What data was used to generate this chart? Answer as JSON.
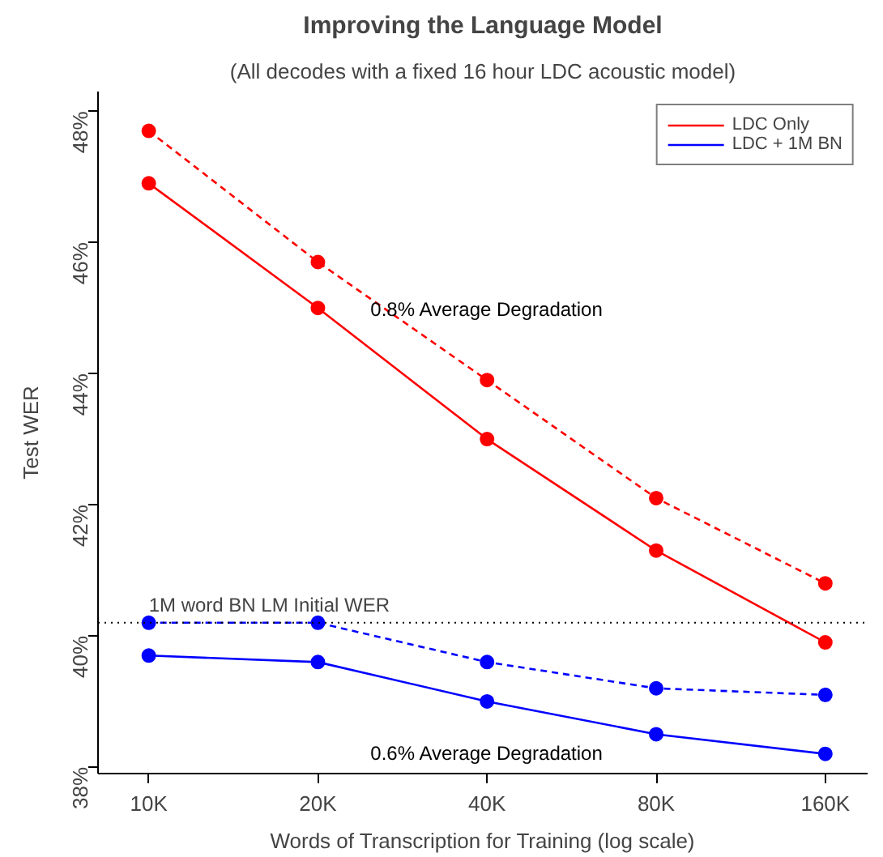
{
  "chart_data": {
    "type": "line",
    "title": "Improving the Language Model",
    "subtitle": "(All decodes with a fixed 16 hour LDC acoustic model)",
    "xlabel": "Words of Transcription for Training (log scale)",
    "ylabel": "Test WER",
    "categories": [
      "10K",
      "20K",
      "40K",
      "80K",
      "160K"
    ],
    "series": [
      {
        "color": "#ff0000",
        "line_style": "dashed",
        "values": [
          47.7,
          45.7,
          43.9,
          42.1,
          40.8
        ]
      },
      {
        "name": "LDC Only",
        "color": "#ff0000",
        "line_style": "solid",
        "values": [
          46.9,
          45.0,
          43.0,
          41.3,
          39.9
        ]
      },
      {
        "color": "#0000ff",
        "line_style": "dashed",
        "values": [
          40.2,
          40.2,
          39.6,
          39.2,
          39.1
        ]
      },
      {
        "name": "LDC + 1M BN",
        "color": "#0000ff",
        "line_style": "solid",
        "values": [
          39.7,
          39.6,
          39.0,
          38.5,
          38.2
        ]
      }
    ],
    "ylim": [
      37.9,
      48.3
    ],
    "yticks": [
      {
        "value": 38,
        "label": "38%"
      },
      {
        "value": 40,
        "label": "40%"
      },
      {
        "value": 42,
        "label": "42%"
      },
      {
        "value": 44,
        "label": "44%"
      },
      {
        "value": 46,
        "label": "46%"
      },
      {
        "value": 48,
        "label": "48%"
      }
    ],
    "ref_lines": [
      {
        "axis": "y",
        "value": 40.2,
        "label": "1M word BN LM Initial WER",
        "color": "#000000",
        "line_style": "dotted"
      }
    ],
    "annotations": [
      "0.8% Average Degradation",
      "0.6% Average Degradation"
    ],
    "marker": "circle",
    "grid": false,
    "legend": "top right"
  }
}
